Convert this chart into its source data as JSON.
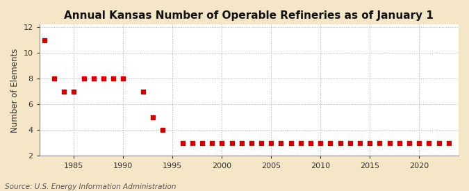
{
  "title": "Annual Kansas Number of Operable Refineries as of January 1",
  "ylabel": "Number of Elements",
  "source": "Source: U.S. Energy Information Administration",
  "background_color": "#f5e6c8",
  "plot_bg_color": "#ffffff",
  "marker_color": "#cc0000",
  "xlim": [
    1981.5,
    2024
  ],
  "ylim": [
    2,
    12.2
  ],
  "yticks": [
    2,
    4,
    6,
    8,
    10,
    12
  ],
  "xticks": [
    1985,
    1990,
    1995,
    2000,
    2005,
    2010,
    2015,
    2020
  ],
  "data": {
    "1982": 11,
    "1983": 8,
    "1984": 7,
    "1985": 7,
    "1986": 8,
    "1987": 8,
    "1988": 8,
    "1989": 8,
    "1990": 8,
    "1992": 7,
    "1993": 5,
    "1994": 4,
    "1996": 3,
    "1997": 3,
    "1998": 3,
    "1999": 3,
    "2000": 3,
    "2001": 3,
    "2002": 3,
    "2003": 3,
    "2004": 3,
    "2005": 3,
    "2006": 3,
    "2007": 3,
    "2008": 3,
    "2009": 3,
    "2010": 3,
    "2011": 3,
    "2012": 3,
    "2013": 3,
    "2014": 3,
    "2015": 3,
    "2016": 3,
    "2017": 3,
    "2018": 3,
    "2019": 3,
    "2020": 3,
    "2021": 3,
    "2022": 3,
    "2023": 3
  },
  "grid_color": "#aaaaaa",
  "grid_linestyle": ":",
  "title_fontsize": 11,
  "label_fontsize": 8.5,
  "tick_fontsize": 8,
  "source_fontsize": 7.5,
  "marker_size": 16
}
